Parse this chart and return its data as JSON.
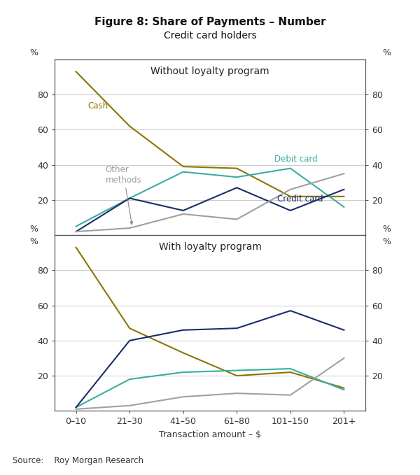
{
  "title": "Figure 8: Share of Payments – Number",
  "subtitle": "Credit card holders",
  "xlabel": "Transaction amount – $",
  "source": "Source:    Roy Morgan Research",
  "x_labels": [
    "0–10",
    "21–30",
    "41–50",
    "61–80",
    "101–150",
    "201+"
  ],
  "panel1_title": "Without loyalty program",
  "panel2_title": "With loyalty program",
  "panel1_cash": [
    93,
    62,
    39,
    38,
    22,
    22
  ],
  "panel1_debit": [
    5,
    21,
    36,
    33,
    38,
    16
  ],
  "panel1_credit": [
    2,
    21,
    14,
    27,
    14,
    26
  ],
  "panel1_other": [
    2,
    4,
    12,
    9,
    26,
    35
  ],
  "panel2_cash": [
    93,
    47,
    33,
    20,
    22,
    13
  ],
  "panel2_debit": [
    2,
    18,
    22,
    23,
    24,
    12
  ],
  "panel2_credit": [
    2,
    40,
    46,
    47,
    57,
    46
  ],
  "panel2_other": [
    1,
    3,
    8,
    10,
    9,
    30
  ],
  "color_cash": "#8B7500",
  "color_debit": "#3aada0",
  "color_credit": "#1a2d6b",
  "color_other": "#a0a0a0",
  "ylim": [
    0,
    100
  ],
  "yticks": [
    20,
    40,
    60,
    80
  ],
  "lw": 1.5,
  "tick_fs": 9,
  "annot_fs": 8.5,
  "panel_title_fs": 10,
  "title_fs": 11,
  "sub_fs": 10,
  "source_fs": 8.5
}
